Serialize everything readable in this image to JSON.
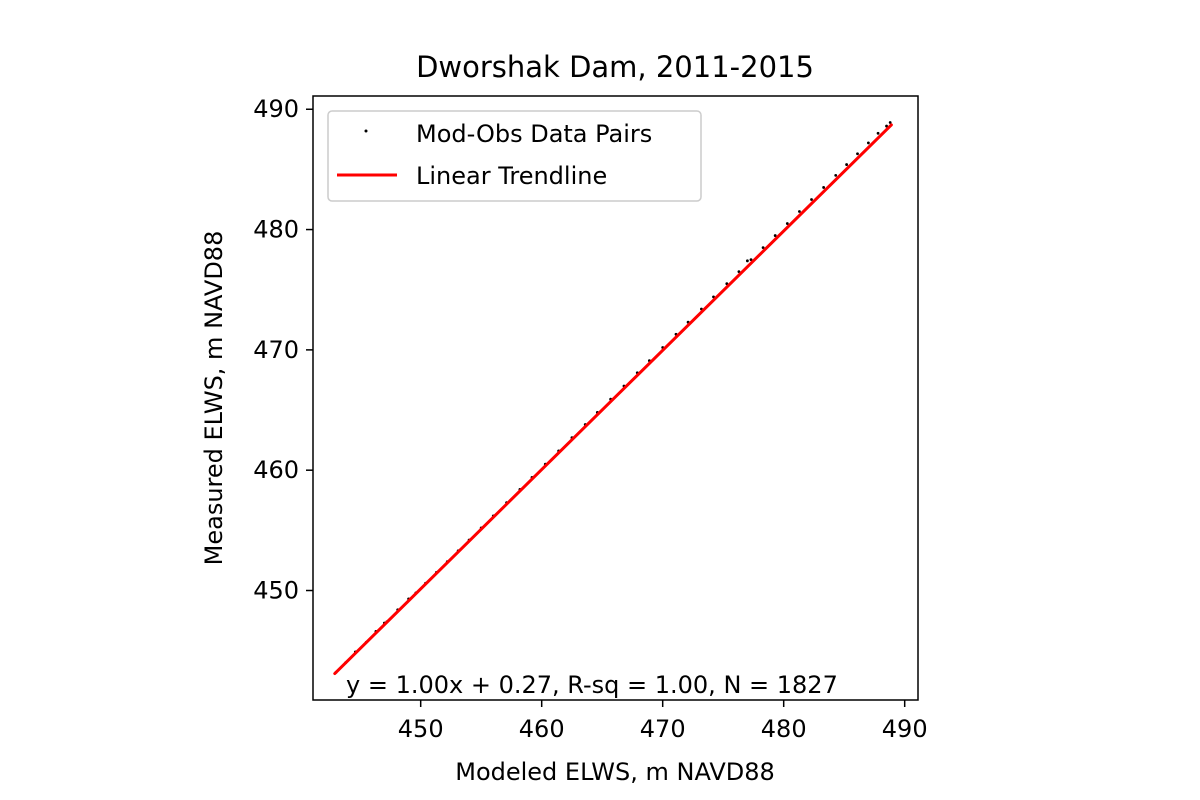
{
  "chart_data": {
    "type": "scatter",
    "title": "Dworshak Dam, 2011-2015",
    "xlabel": "Modeled ELWS, m NAVD88",
    "ylabel": "Measured ELWS, m NAVD88",
    "xlim": [
      441.1,
      491.1
    ],
    "ylim": [
      440.9,
      491.1
    ],
    "xticks": [
      450,
      460,
      470,
      480,
      490
    ],
    "yticks": [
      450,
      460,
      470,
      480,
      490
    ],
    "grid": false,
    "legend_position": "upper-left",
    "series": [
      {
        "name": "Mod-Obs Data Pairs",
        "kind": "points",
        "color": "#000000",
        "x": [
          443.0,
          443.8,
          444.6,
          445.5,
          446.3,
          447.0,
          447.2,
          448.1,
          449.0,
          449.6,
          450.4,
          451.3,
          452.2,
          453.1,
          454.0,
          455.0,
          456.0,
          457.1,
          458.2,
          459.2,
          460.3,
          461.4,
          462.5,
          463.6,
          464.6,
          465.7,
          466.8,
          467.9,
          468.9,
          470.0,
          471.1,
          472.1,
          473.2,
          474.2,
          475.3,
          476.3,
          477.0,
          477.3,
          478.3,
          479.3,
          480.3,
          481.3,
          482.3,
          483.3,
          484.3,
          485.2,
          486.1,
          487.0,
          487.8,
          488.5,
          488.8
        ],
        "y": [
          443.2,
          444.0,
          444.9,
          445.7,
          446.6,
          447.3,
          447.4,
          448.4,
          449.3,
          449.8,
          450.6,
          451.5,
          452.4,
          453.3,
          454.2,
          455.2,
          456.2,
          457.3,
          458.4,
          459.4,
          460.5,
          461.6,
          462.7,
          463.8,
          464.8,
          465.9,
          467.0,
          468.1,
          469.1,
          470.2,
          471.3,
          472.3,
          473.4,
          474.4,
          475.5,
          476.5,
          477.4,
          477.5,
          478.5,
          479.5,
          480.5,
          481.5,
          482.5,
          483.5,
          484.5,
          485.4,
          486.3,
          487.2,
          488.0,
          488.6,
          488.9
        ]
      },
      {
        "name": "Linear Trendline",
        "kind": "line",
        "color": "#ff0000",
        "x": [
          442.9,
          488.9
        ],
        "y": [
          443.1,
          488.7
        ]
      }
    ],
    "annotation": "y = 1.00x + 0.27, R-sq = 1.00, N = 1827"
  }
}
